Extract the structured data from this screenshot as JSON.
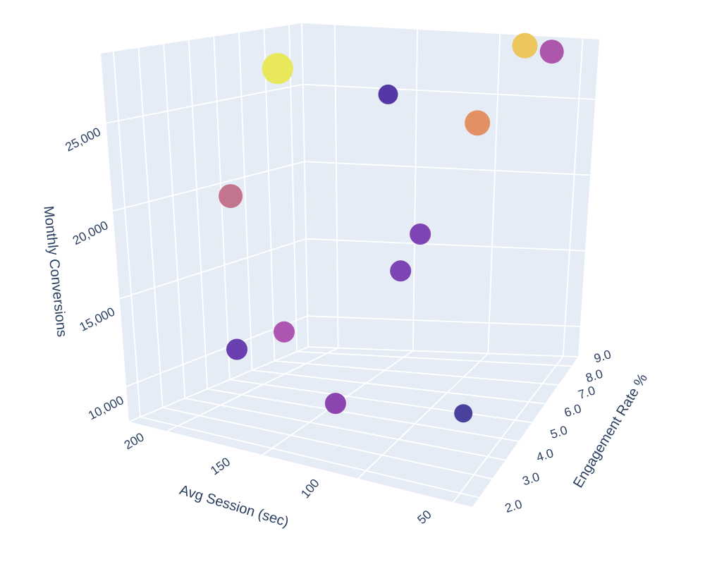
{
  "chart_data": {
    "type": "scatter3d",
    "background_color": "#E5ECF6",
    "grid_color": "#FFFFFF",
    "label_color": "#2A3F5F",
    "axes": {
      "x": {
        "label": "Avg Session (sec)",
        "range": [
          40,
          220
        ],
        "ticks": [
          {
            "value": 200,
            "label": "200"
          },
          {
            "value": 150,
            "label": "150"
          },
          {
            "value": 100,
            "label": "100"
          },
          {
            "value": 50,
            "label": "50"
          }
        ]
      },
      "y": {
        "label": "Engagement Rate %",
        "range": [
          1.5,
          9.5
        ],
        "ticks": [
          {
            "value": 2,
            "label": "2.0"
          },
          {
            "value": 3,
            "label": "3.0"
          },
          {
            "value": 4,
            "label": "4.0"
          },
          {
            "value": 5,
            "label": "5.0"
          },
          {
            "value": 6,
            "label": "6.0"
          },
          {
            "value": 7,
            "label": "7.0"
          },
          {
            "value": 8,
            "label": "8.0"
          },
          {
            "value": 9,
            "label": "9.0"
          }
        ]
      },
      "z": {
        "label": "Monthly Conversions",
        "range": [
          8000,
          29000
        ],
        "ticks": [
          {
            "value": 25000,
            "label": "25,000"
          },
          {
            "value": 20000,
            "label": "20,000"
          },
          {
            "value": 15000,
            "label": "15,000"
          },
          {
            "value": 10000,
            "label": "10,000"
          }
        ]
      }
    },
    "points": [
      {
        "session": 184,
        "engagement": 5.9,
        "conversions": 27500,
        "size": 22,
        "color": "#E9E85A"
      },
      {
        "session": 76,
        "engagement": 8.7,
        "conversions": 28800,
        "size": 18,
        "color": "#ECC75D"
      },
      {
        "session": 62,
        "engagement": 8.9,
        "conversions": 28400,
        "size": 17,
        "color": "#AC56AC"
      },
      {
        "session": 137,
        "engagement": 7.1,
        "conversions": 26000,
        "size": 14,
        "color": "#5537A6"
      },
      {
        "session": 94,
        "engagement": 7.9,
        "conversions": 24200,
        "size": 18,
        "color": "#E49065"
      },
      {
        "session": 180,
        "engagement": 3.3,
        "conversions": 21000,
        "size": 17,
        "color": "#C4758E"
      },
      {
        "session": 116,
        "engagement": 6.9,
        "conversions": 17700,
        "size": 15,
        "color": "#7F44B4"
      },
      {
        "session": 121,
        "engagement": 6.3,
        "conversions": 15800,
        "size": 15,
        "color": "#7F44B4"
      },
      {
        "session": 159,
        "engagement": 3.7,
        "conversions": 13300,
        "size": 15,
        "color": "#AD55B0"
      },
      {
        "session": 182,
        "engagement": 3.4,
        "conversions": 12000,
        "size": 15,
        "color": "#6A3FB0"
      },
      {
        "session": 134,
        "engagement": 3.9,
        "conversions": 9500,
        "size": 15,
        "color": "#8A46AE"
      },
      {
        "session": 72,
        "engagement": 5.0,
        "conversions": 9100,
        "size": 13,
        "color": "#4B429E"
      }
    ]
  }
}
